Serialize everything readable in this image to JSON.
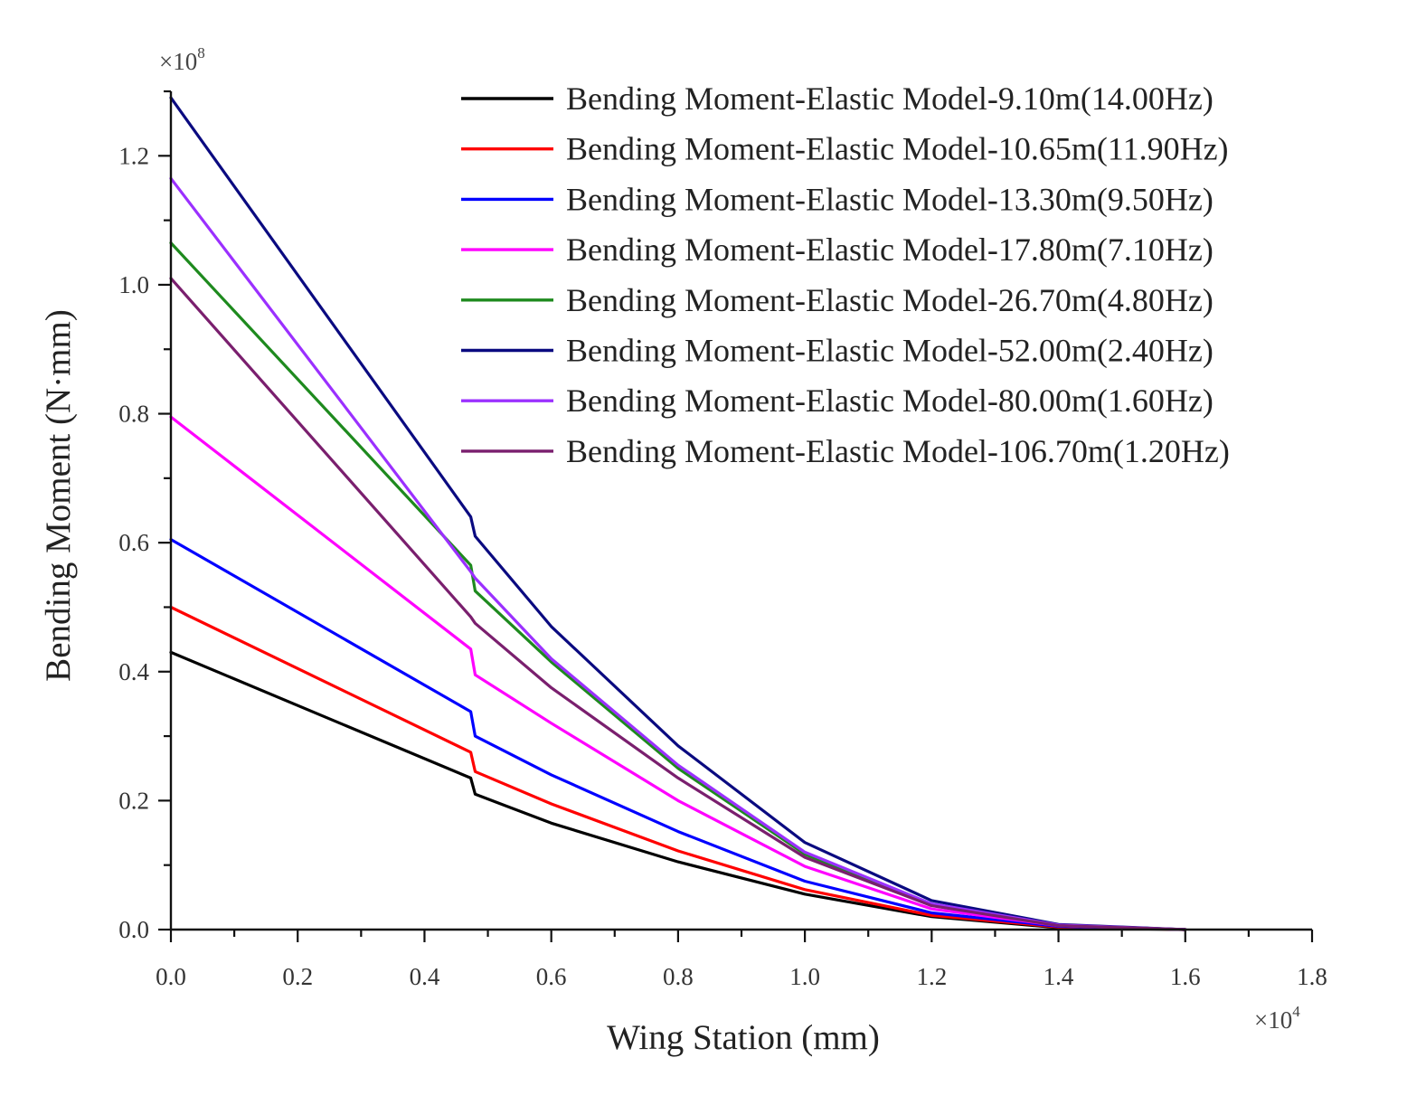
{
  "chart_data": {
    "type": "line",
    "title": "",
    "xlabel": "Wing Station (mm)",
    "ylabel": "Bending Moment (N·mm)",
    "x_multiplier": {
      "base": "×10",
      "exponent": "4"
    },
    "y_multiplier": {
      "base": "×10",
      "exponent": "8"
    },
    "xlim": [
      0.0,
      1.8
    ],
    "ylim": [
      0.0,
      1.3
    ],
    "x_ticks": [
      "0.0",
      "0.2",
      "0.4",
      "0.6",
      "0.8",
      "1.0",
      "1.2",
      "1.4",
      "1.6",
      "1.8"
    ],
    "y_ticks": [
      "0.0",
      "0.2",
      "0.4",
      "0.6",
      "0.8",
      "1.0",
      "1.2"
    ],
    "grid": false,
    "legend_position": "top-right",
    "series": [
      {
        "name": "Bending Moment-Elastic Model-9.10m(14.00Hz)",
        "color": "#000000",
        "x": [
          0.0,
          0.473,
          0.48,
          0.6,
          0.8,
          1.0,
          1.2,
          1.4,
          1.6
        ],
        "y": [
          0.43,
          0.235,
          0.21,
          0.165,
          0.105,
          0.055,
          0.02,
          0.003,
          0.0
        ]
      },
      {
        "name": "Bending Moment-Elastic Model-10.65m(11.90Hz)",
        "color": "#ff0000",
        "x": [
          0.0,
          0.473,
          0.48,
          0.6,
          0.8,
          1.0,
          1.2,
          1.4,
          1.6
        ],
        "y": [
          0.5,
          0.275,
          0.245,
          0.195,
          0.122,
          0.062,
          0.022,
          0.004,
          0.0
        ]
      },
      {
        "name": "Bending Moment-Elastic Model-13.30m(9.50Hz)",
        "color": "#0000ff",
        "x": [
          0.0,
          0.473,
          0.48,
          0.6,
          0.8,
          1.0,
          1.2,
          1.4,
          1.6
        ],
        "y": [
          0.605,
          0.338,
          0.3,
          0.24,
          0.152,
          0.075,
          0.026,
          0.005,
          0.0
        ]
      },
      {
        "name": "Bending Moment-Elastic Model-17.80m(7.10Hz)",
        "color": "#ff00ff",
        "x": [
          0.0,
          0.473,
          0.48,
          0.6,
          0.8,
          1.0,
          1.2,
          1.4,
          1.6
        ],
        "y": [
          0.795,
          0.435,
          0.395,
          0.32,
          0.2,
          0.098,
          0.032,
          0.006,
          0.0
        ]
      },
      {
        "name": "Bending Moment-Elastic Model-26.70m(4.80Hz)",
        "color": "#1e8a1e",
        "x": [
          0.0,
          0.473,
          0.48,
          0.6,
          0.8,
          1.0,
          1.2,
          1.4,
          1.6
        ],
        "y": [
          1.065,
          0.565,
          0.525,
          0.415,
          0.25,
          0.117,
          0.038,
          0.007,
          0.0
        ]
      },
      {
        "name": "Bending Moment-Elastic Model-52.00m(2.40Hz)",
        "color": "#0a0a80",
        "x": [
          0.0,
          0.473,
          0.48,
          0.6,
          0.8,
          1.0,
          1.2,
          1.4,
          1.6
        ],
        "y": [
          1.29,
          0.64,
          0.61,
          0.47,
          0.285,
          0.135,
          0.045,
          0.008,
          0.0
        ]
      },
      {
        "name": "Bending Moment-Elastic Model-80.00m(1.60Hz)",
        "color": "#9b30ff",
        "x": [
          0.0,
          0.473,
          0.48,
          0.6,
          0.8,
          1.0,
          1.2,
          1.4,
          1.6
        ],
        "y": [
          1.165,
          0.555,
          0.545,
          0.42,
          0.255,
          0.12,
          0.04,
          0.007,
          0.0
        ]
      },
      {
        "name": "Bending Moment-Elastic Model-106.70m(1.20Hz)",
        "color": "#7a1f6e",
        "x": [
          0.0,
          0.473,
          0.48,
          0.6,
          0.8,
          1.0,
          1.2,
          1.4,
          1.6
        ],
        "y": [
          1.01,
          0.485,
          0.475,
          0.375,
          0.235,
          0.112,
          0.037,
          0.006,
          0.0
        ]
      }
    ]
  }
}
